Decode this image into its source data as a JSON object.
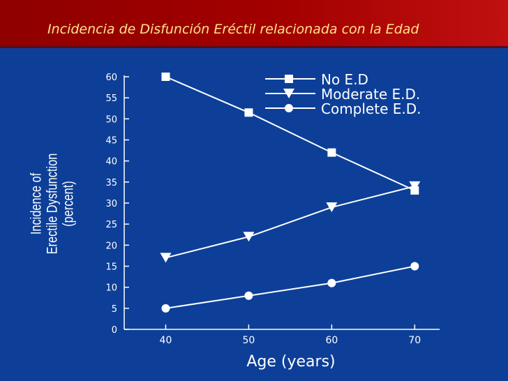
{
  "slide": {
    "title": "Incidencia de Disfunción Eréctil relacionada con la Edad"
  },
  "colors": {
    "background": "#0d3f98",
    "header": "#a30000",
    "title": "#ffe38a",
    "chart_ink": "#ffffff"
  },
  "chart_data": {
    "type": "line",
    "title": "",
    "xlabel": "Age (years)",
    "ylabel_lines": [
      "Incidence of",
      "Erectile Dysfunction",
      "(percent)"
    ],
    "x": [
      40,
      50,
      60,
      70
    ],
    "xticks": [
      "40",
      "50",
      "60",
      "70"
    ],
    "xlim": [
      35,
      73
    ],
    "ylim": [
      0,
      60
    ],
    "yticks": [
      "0",
      "5",
      "10",
      "15",
      "20",
      "25",
      "30",
      "35",
      "40",
      "45",
      "50",
      "55",
      "60"
    ],
    "grid": false,
    "legend_position": "top-right",
    "series": [
      {
        "name": "No E.D",
        "marker": "square",
        "values": [
          60,
          51.5,
          42,
          33
        ]
      },
      {
        "name": "Moderate E.D.",
        "marker": "triangle-down",
        "values": [
          17,
          22,
          29,
          34
        ]
      },
      {
        "name": "Complete E.D.",
        "marker": "circle",
        "values": [
          5,
          8,
          11,
          15
        ]
      }
    ]
  }
}
